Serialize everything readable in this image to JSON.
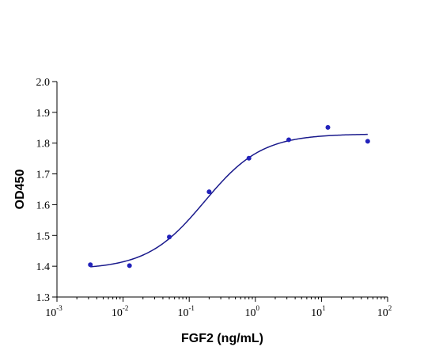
{
  "chart_data": {
    "type": "scatter",
    "xlabel": "FGF2 (ng/mL)",
    "ylabel": "OD450",
    "x_scale": "log",
    "xlim": [
      0.001,
      100
    ],
    "ylim": [
      1.3,
      2.0
    ],
    "x_ticks": [
      {
        "value": 0.001,
        "base": "10",
        "exp": "-3"
      },
      {
        "value": 0.01,
        "base": "10",
        "exp": "-2"
      },
      {
        "value": 0.1,
        "base": "10",
        "exp": "-1"
      },
      {
        "value": 1,
        "base": "10",
        "exp": "0"
      },
      {
        "value": 10,
        "base": "10",
        "exp": "1"
      },
      {
        "value": 100,
        "base": "10",
        "exp": "2"
      }
    ],
    "y_ticks": [
      {
        "value": 1.3,
        "label": "1.3"
      },
      {
        "value": 1.4,
        "label": "1.4"
      },
      {
        "value": 1.5,
        "label": "1.5"
      },
      {
        "value": 1.6,
        "label": "1.6"
      },
      {
        "value": 1.7,
        "label": "1.7"
      },
      {
        "value": 1.8,
        "label": "1.8"
      },
      {
        "value": 1.9,
        "label": "1.9"
      },
      {
        "value": 2.0,
        "label": "2.0"
      }
    ],
    "grid": false,
    "colors": {
      "series": "#2222bb",
      "fit": "#1a1a8c"
    },
    "series": [
      {
        "x": [
          0.0032,
          0.0125,
          0.05,
          0.2,
          0.8,
          3.2,
          12.5,
          50
        ],
        "y": [
          1.405,
          1.402,
          1.495,
          1.642,
          1.751,
          1.811,
          1.851,
          1.806
        ]
      }
    ],
    "fit_curve": {
      "model": "4PL",
      "bottom": 1.39,
      "top": 1.83,
      "ec50": 0.17,
      "hill": 1.0,
      "x_range": [
        0.0032,
        50
      ]
    }
  }
}
